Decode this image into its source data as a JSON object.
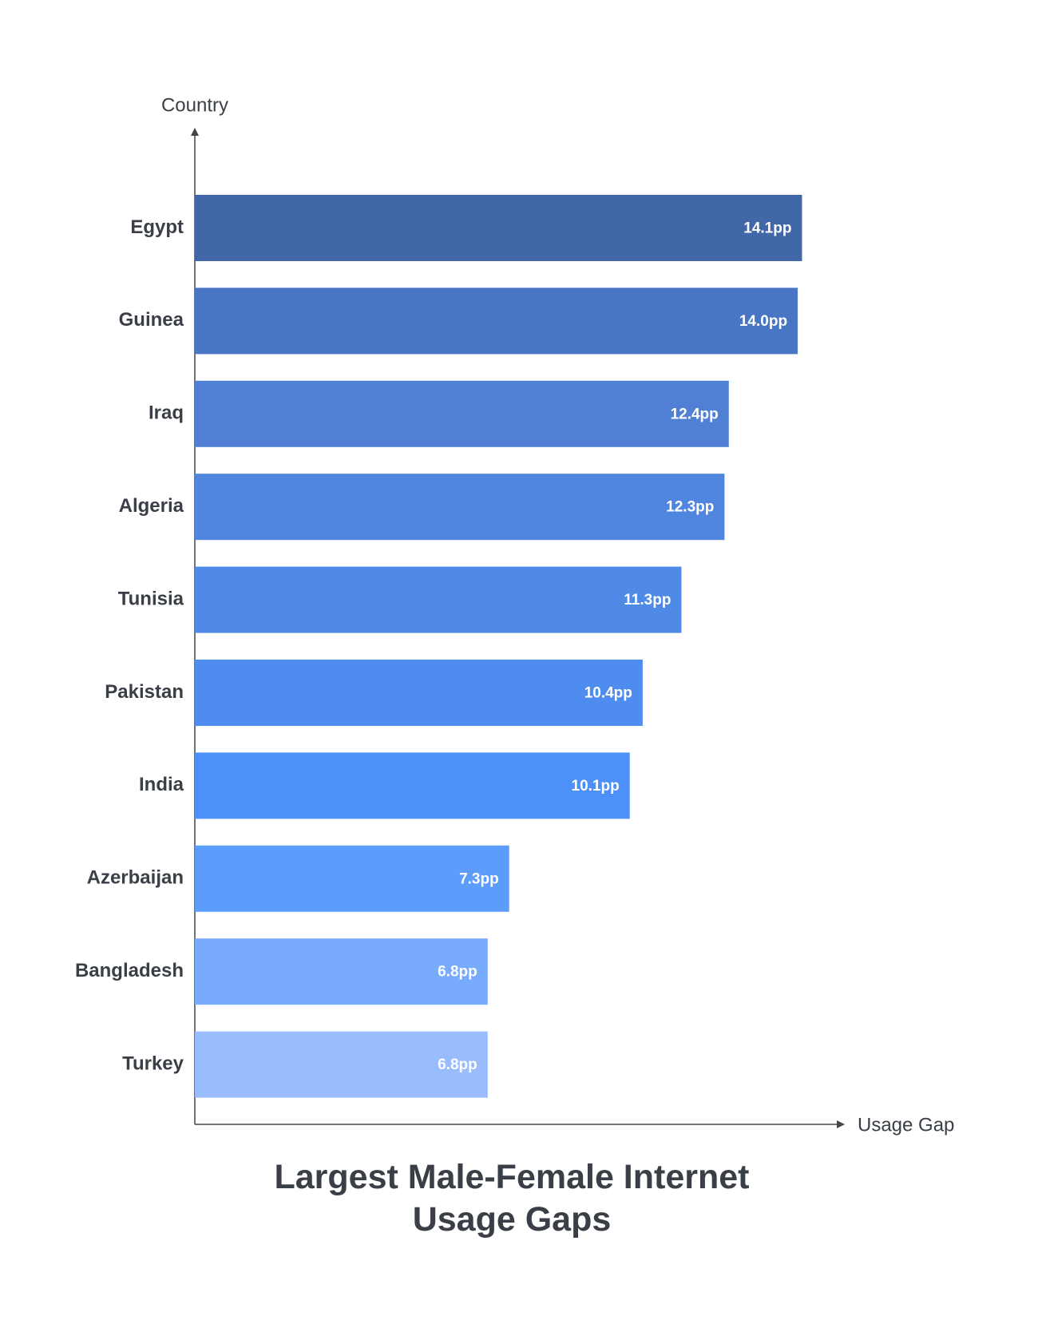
{
  "chart_data": {
    "type": "bar",
    "orientation": "horizontal",
    "title": "Largest Male-Female Internet Usage Gaps",
    "x_label": "Usage Gap",
    "y_label": "Country",
    "categories": [
      "Egypt",
      "Guinea",
      "Iraq",
      "Algeria",
      "Tunisia",
      "Pakistan",
      "India",
      "Azerbaijan",
      "Bangladesh",
      "Turkey"
    ],
    "values": [
      14.1,
      14.0,
      12.4,
      12.3,
      11.3,
      10.4,
      10.1,
      7.3,
      6.8,
      6.8
    ],
    "value_labels": [
      "14.1pp",
      "14.0pp",
      "12.4pp",
      "12.3pp",
      "11.3pp",
      "10.4pp",
      "10.1pp",
      "7.3pp",
      "6.8pp",
      "6.8pp"
    ],
    "colors": [
      "#4267a8",
      "#4876c4",
      "#5080d4",
      "#5086e0",
      "#4f8ae6",
      "#4f8cf0",
      "#4d90f8",
      "#5c9cfa",
      "#79abfc",
      "#98bcfc"
    ],
    "xlim": [
      0,
      15
    ]
  }
}
